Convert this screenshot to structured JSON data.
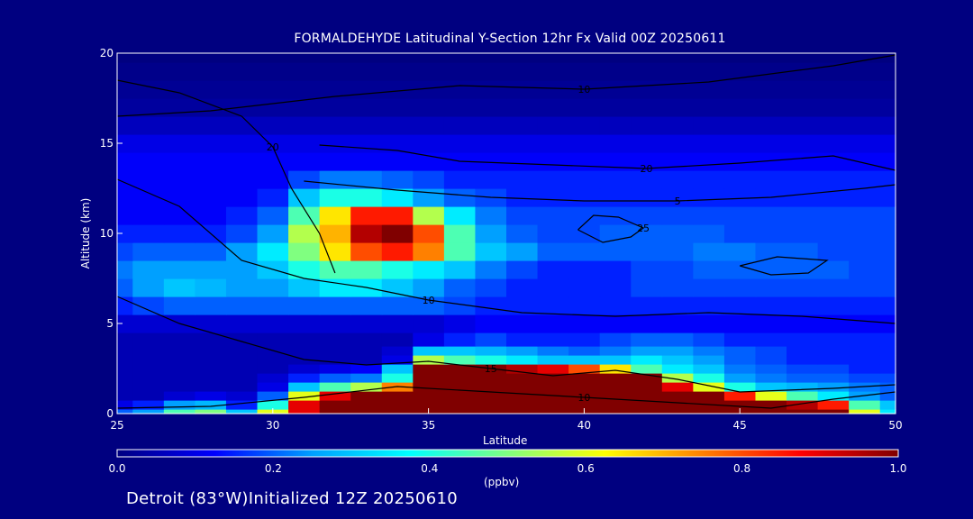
{
  "title": "FORMALDEHYDE Latitudinal Y-Section 12hr  Fx Valid 00Z 20250611",
  "footer": "Detroit (83°W)Initialized 12Z 20250610",
  "colorbar": {
    "unit_label": "(ppbv)",
    "min": 0.0,
    "max": 1.0,
    "tick_labels": [
      "0.0",
      "0.2",
      "0.4",
      "0.6",
      "0.8",
      "1.0"
    ],
    "colormap": [
      "#000080",
      "#0000ff",
      "#00a0ff",
      "#00ffff",
      "#80ff80",
      "#ffff00",
      "#ff8000",
      "#ff0000",
      "#800000"
    ]
  },
  "colors": {
    "background": "#000080",
    "contour_line": "#000000",
    "text": "#ffffff"
  },
  "chart_data": {
    "type": "heatmap",
    "title": "FORMALDEHYDE Latitudinal Y-Section 12hr  Fx Valid 00Z 20250611",
    "xlabel": "Latitude",
    "ylabel": "Altitude (km)",
    "xlim": [
      25,
      50
    ],
    "ylim": [
      0,
      20
    ],
    "x_ticks": [
      25,
      30,
      35,
      40,
      45,
      50
    ],
    "y_ticks": [
      0,
      5,
      10,
      15,
      20
    ],
    "x": [
      25,
      26,
      27,
      28,
      29,
      30,
      31,
      32,
      33,
      34,
      35,
      36,
      37,
      38,
      39,
      40,
      41,
      42,
      43,
      44,
      45,
      46,
      47,
      48,
      49,
      50
    ],
    "y": [
      0,
      0.5,
      1,
      1.5,
      2,
      2.5,
      3,
      3.5,
      4,
      5,
      6,
      7,
      8,
      9,
      10,
      11,
      12,
      13,
      14,
      15,
      16,
      17,
      18,
      19,
      20
    ],
    "z": [
      [
        0.2,
        0.25,
        0.45,
        0.5,
        0.3,
        0.6,
        0.9,
        1.0,
        1.0,
        1.0,
        1.0,
        1.0,
        1.0,
        1.0,
        1.0,
        1.0,
        1.0,
        1.0,
        1.0,
        1.0,
        1.0,
        1.0,
        1.0,
        1.0,
        0.6,
        0.35
      ],
      [
        0.1,
        0.15,
        0.25,
        0.28,
        0.15,
        0.4,
        0.9,
        1.0,
        1.0,
        1.0,
        1.0,
        1.0,
        1.0,
        1.0,
        1.0,
        1.0,
        1.0,
        1.0,
        1.0,
        1.0,
        1.0,
        1.0,
        0.95,
        0.85,
        0.45,
        0.3
      ],
      [
        0.05,
        0.05,
        0.08,
        0.1,
        0.08,
        0.2,
        0.6,
        0.9,
        1.0,
        1.0,
        1.0,
        1.0,
        1.0,
        1.0,
        1.0,
        1.0,
        1.0,
        1.0,
        1.0,
        1.0,
        0.85,
        0.6,
        0.45,
        0.35,
        0.25,
        0.2
      ],
      [
        0.05,
        0.05,
        0.05,
        0.05,
        0.05,
        0.1,
        0.3,
        0.45,
        0.55,
        0.75,
        1.0,
        1.0,
        1.0,
        1.0,
        1.0,
        1.0,
        1.0,
        1.0,
        0.9,
        0.6,
        0.4,
        0.3,
        0.28,
        0.25,
        0.22,
        0.2
      ],
      [
        0.05,
        0.05,
        0.05,
        0.05,
        0.05,
        0.08,
        0.15,
        0.2,
        0.22,
        0.4,
        1.0,
        1.0,
        1.0,
        1.0,
        1.0,
        1.0,
        1.0,
        1.0,
        0.55,
        0.4,
        0.25,
        0.22,
        0.2,
        0.2,
        0.18,
        0.18
      ],
      [
        0.05,
        0.05,
        0.05,
        0.05,
        0.05,
        0.05,
        0.08,
        0.1,
        0.12,
        0.3,
        1.0,
        1.0,
        1.0,
        0.95,
        0.9,
        0.8,
        0.65,
        0.45,
        0.35,
        0.3,
        0.22,
        0.2,
        0.18,
        0.18,
        0.15,
        0.15
      ],
      [
        0.05,
        0.05,
        0.05,
        0.05,
        0.05,
        0.05,
        0.05,
        0.05,
        0.05,
        0.1,
        0.55,
        0.45,
        0.4,
        0.35,
        0.3,
        0.3,
        0.3,
        0.35,
        0.3,
        0.25,
        0.2,
        0.18,
        0.15,
        0.15,
        0.15,
        0.15
      ],
      [
        0.05,
        0.05,
        0.05,
        0.05,
        0.05,
        0.05,
        0.05,
        0.05,
        0.05,
        0.08,
        0.3,
        0.3,
        0.28,
        0.25,
        0.22,
        0.2,
        0.22,
        0.25,
        0.25,
        0.22,
        0.2,
        0.18,
        0.15,
        0.15,
        0.15,
        0.15
      ],
      [
        0.05,
        0.05,
        0.05,
        0.05,
        0.05,
        0.05,
        0.05,
        0.05,
        0.05,
        0.05,
        0.1,
        0.15,
        0.18,
        0.15,
        0.15,
        0.15,
        0.18,
        0.2,
        0.2,
        0.18,
        0.15,
        0.15,
        0.15,
        0.15,
        0.15,
        0.15
      ],
      [
        0.08,
        0.08,
        0.08,
        0.08,
        0.08,
        0.08,
        0.08,
        0.08,
        0.08,
        0.08,
        0.08,
        0.1,
        0.12,
        0.12,
        0.12,
        0.12,
        0.12,
        0.12,
        0.12,
        0.12,
        0.12,
        0.12,
        0.12,
        0.12,
        0.12,
        0.12
      ],
      [
        0.15,
        0.18,
        0.2,
        0.2,
        0.2,
        0.2,
        0.2,
        0.2,
        0.2,
        0.2,
        0.2,
        0.18,
        0.15,
        0.15,
        0.15,
        0.15,
        0.15,
        0.15,
        0.15,
        0.15,
        0.15,
        0.15,
        0.15,
        0.15,
        0.15,
        0.15
      ],
      [
        0.2,
        0.25,
        0.3,
        0.28,
        0.25,
        0.25,
        0.3,
        0.35,
        0.35,
        0.3,
        0.25,
        0.2,
        0.18,
        0.15,
        0.15,
        0.15,
        0.15,
        0.18,
        0.18,
        0.18,
        0.18,
        0.18,
        0.18,
        0.18,
        0.18,
        0.18
      ],
      [
        0.22,
        0.25,
        0.25,
        0.25,
        0.25,
        0.3,
        0.4,
        0.45,
        0.45,
        0.4,
        0.35,
        0.3,
        0.22,
        0.18,
        0.15,
        0.15,
        0.15,
        0.18,
        0.18,
        0.2,
        0.2,
        0.2,
        0.2,
        0.2,
        0.18,
        0.18
      ],
      [
        0.18,
        0.2,
        0.2,
        0.2,
        0.25,
        0.35,
        0.5,
        0.65,
        0.8,
        0.85,
        0.75,
        0.45,
        0.3,
        0.25,
        0.2,
        0.2,
        0.2,
        0.2,
        0.2,
        0.22,
        0.22,
        0.2,
        0.2,
        0.18,
        0.18,
        0.18
      ],
      [
        0.15,
        0.15,
        0.15,
        0.15,
        0.18,
        0.25,
        0.55,
        0.7,
        0.95,
        1.0,
        0.8,
        0.45,
        0.25,
        0.2,
        0.18,
        0.18,
        0.2,
        0.2,
        0.2,
        0.2,
        0.18,
        0.18,
        0.18,
        0.18,
        0.18,
        0.18
      ],
      [
        0.12,
        0.12,
        0.12,
        0.12,
        0.15,
        0.2,
        0.45,
        0.65,
        0.85,
        0.85,
        0.55,
        0.35,
        0.22,
        0.18,
        0.18,
        0.18,
        0.18,
        0.18,
        0.18,
        0.18,
        0.18,
        0.18,
        0.18,
        0.18,
        0.18,
        0.18
      ],
      [
        0.12,
        0.12,
        0.12,
        0.12,
        0.12,
        0.15,
        0.3,
        0.4,
        0.4,
        0.35,
        0.25,
        0.2,
        0.18,
        0.15,
        0.15,
        0.15,
        0.15,
        0.15,
        0.15,
        0.15,
        0.15,
        0.15,
        0.15,
        0.15,
        0.15,
        0.15
      ],
      [
        0.12,
        0.12,
        0.12,
        0.12,
        0.12,
        0.12,
        0.18,
        0.22,
        0.22,
        0.2,
        0.18,
        0.15,
        0.15,
        0.15,
        0.15,
        0.15,
        0.15,
        0.15,
        0.15,
        0.15,
        0.15,
        0.15,
        0.15,
        0.15,
        0.15,
        0.15
      ],
      [
        0.12,
        0.12,
        0.12,
        0.12,
        0.12,
        0.12,
        0.12,
        0.12,
        0.12,
        0.12,
        0.12,
        0.12,
        0.12,
        0.12,
        0.12,
        0.12,
        0.12,
        0.12,
        0.12,
        0.12,
        0.12,
        0.12,
        0.12,
        0.12,
        0.12,
        0.12
      ],
      [
        0.1,
        0.1,
        0.1,
        0.1,
        0.1,
        0.1,
        0.1,
        0.1,
        0.1,
        0.1,
        0.1,
        0.1,
        0.1,
        0.1,
        0.1,
        0.1,
        0.1,
        0.1,
        0.1,
        0.1,
        0.1,
        0.1,
        0.1,
        0.1,
        0.1,
        0.1
      ],
      [
        0.06,
        0.06,
        0.06,
        0.06,
        0.06,
        0.06,
        0.06,
        0.06,
        0.06,
        0.06,
        0.06,
        0.06,
        0.06,
        0.06,
        0.06,
        0.06,
        0.06,
        0.06,
        0.06,
        0.06,
        0.06,
        0.06,
        0.06,
        0.06,
        0.06,
        0.06
      ],
      [
        0.03,
        0.03,
        0.03,
        0.03,
        0.03,
        0.03,
        0.03,
        0.03,
        0.03,
        0.03,
        0.03,
        0.03,
        0.03,
        0.03,
        0.03,
        0.03,
        0.03,
        0.03,
        0.03,
        0.03,
        0.03,
        0.03,
        0.03,
        0.03,
        0.03,
        0.03
      ],
      [
        0.02,
        0.02,
        0.02,
        0.02,
        0.02,
        0.02,
        0.02,
        0.02,
        0.02,
        0.02,
        0.02,
        0.02,
        0.02,
        0.02,
        0.02,
        0.02,
        0.02,
        0.02,
        0.02,
        0.02,
        0.02,
        0.02,
        0.02,
        0.02,
        0.02,
        0.02
      ],
      [
        0.01,
        0.01,
        0.01,
        0.01,
        0.01,
        0.01,
        0.01,
        0.01,
        0.01,
        0.01,
        0.01,
        0.01,
        0.01,
        0.01,
        0.01,
        0.01,
        0.01,
        0.01,
        0.01,
        0.01,
        0.01,
        0.01,
        0.01,
        0.01,
        0.01,
        0.01
      ],
      [
        0.0,
        0.0,
        0.0,
        0.0,
        0.0,
        0.0,
        0.0,
        0.0,
        0.0,
        0.0,
        0.0,
        0.0,
        0.0,
        0.0,
        0.0,
        0.0,
        0.0,
        0.0,
        0.0,
        0.0,
        0.0,
        0.0,
        0.0,
        0.0,
        0.0,
        0.0
      ]
    ],
    "contours": [
      {
        "label": "5",
        "points": [
          [
            31.0,
            12.9
          ],
          [
            34.0,
            12.4
          ],
          [
            37.0,
            12.0
          ],
          [
            40.0,
            11.8
          ],
          [
            43.0,
            11.8
          ],
          [
            46.0,
            12.0
          ],
          [
            49.0,
            12.5
          ],
          [
            50.0,
            12.7
          ]
        ]
      },
      {
        "label": "10",
        "points": [
          [
            25.0,
            16.5
          ],
          [
            28.0,
            16.8
          ],
          [
            32.0,
            17.6
          ],
          [
            36.0,
            18.2
          ],
          [
            40.0,
            18.0
          ],
          [
            44.0,
            18.4
          ],
          [
            48.0,
            19.3
          ],
          [
            50.0,
            19.9
          ]
        ]
      },
      {
        "label": "10",
        "points": [
          [
            25.0,
            13.0
          ],
          [
            27.0,
            11.5
          ],
          [
            29.0,
            8.5
          ],
          [
            31.0,
            7.5
          ],
          [
            33.0,
            7.0
          ],
          [
            35.0,
            6.3
          ],
          [
            38.0,
            5.6
          ],
          [
            41.0,
            5.4
          ],
          [
            44.0,
            5.6
          ],
          [
            47.0,
            5.4
          ],
          [
            50.0,
            5.0
          ]
        ]
      },
      {
        "label": "10",
        "points": [
          [
            25.0,
            0.3
          ],
          [
            28.0,
            0.4
          ],
          [
            31.0,
            0.9
          ],
          [
            34.0,
            1.5
          ],
          [
            37.0,
            1.2
          ],
          [
            40.0,
            0.9
          ],
          [
            43.0,
            0.6
          ],
          [
            46.0,
            0.3
          ],
          [
            48.0,
            0.8
          ],
          [
            50.0,
            1.2
          ]
        ]
      },
      {
        "label": "15",
        "points": [
          [
            25.0,
            6.5
          ],
          [
            27.0,
            5.0
          ],
          [
            29.0,
            4.0
          ],
          [
            31.0,
            3.0
          ],
          [
            33.0,
            2.7
          ],
          [
            35.0,
            2.9
          ],
          [
            37.0,
            2.5
          ],
          [
            39.0,
            2.1
          ],
          [
            41.0,
            2.4
          ],
          [
            43.0,
            1.9
          ],
          [
            45.0,
            1.2
          ],
          [
            48.0,
            1.4
          ],
          [
            50.0,
            1.6
          ]
        ]
      },
      {
        "label": "20",
        "points": [
          [
            31.5,
            14.9
          ],
          [
            34.0,
            14.6
          ],
          [
            36.0,
            14.0
          ],
          [
            39.0,
            13.8
          ],
          [
            42.0,
            13.6
          ],
          [
            45.0,
            13.9
          ],
          [
            48.0,
            14.3
          ],
          [
            50.0,
            13.5
          ]
        ]
      },
      {
        "label": "20",
        "points": [
          [
            25.0,
            18.5
          ],
          [
            27.0,
            17.8
          ],
          [
            29.0,
            16.5
          ],
          [
            30.0,
            14.8
          ],
          [
            30.6,
            12.5
          ],
          [
            31.5,
            10.0
          ],
          [
            32.0,
            7.8
          ]
        ]
      },
      {
        "label": "25",
        "points": [
          [
            39.8,
            10.2
          ],
          [
            40.3,
            11.0
          ],
          [
            41.1,
            10.9
          ],
          [
            41.9,
            10.3
          ],
          [
            41.5,
            9.8
          ],
          [
            40.6,
            9.5
          ],
          [
            39.8,
            10.2
          ]
        ]
      },
      {
        "label": "",
        "points": [
          [
            45.0,
            8.2
          ],
          [
            46.2,
            8.7
          ],
          [
            47.8,
            8.5
          ],
          [
            47.2,
            7.8
          ],
          [
            46.0,
            7.7
          ],
          [
            45.0,
            8.2
          ]
        ]
      }
    ]
  }
}
